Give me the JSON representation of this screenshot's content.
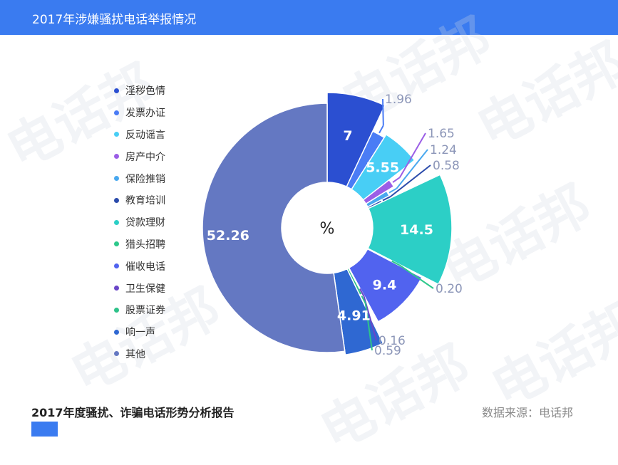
{
  "header": {
    "title": "2017年涉嫌骚扰电话举报情况"
  },
  "watermark_text": "电话邦",
  "chart_data": {
    "type": "pie",
    "center_label": "%",
    "slices": [
      {
        "label": "淫秽色情",
        "value": 7,
        "display": "7",
        "color": "#2b4fd1"
      },
      {
        "label": "发票办证",
        "value": 1.96,
        "display": "1.96",
        "color": "#4a7cf5"
      },
      {
        "label": "反动谣言",
        "value": 5.55,
        "display": "5.55",
        "color": "#48cef5"
      },
      {
        "label": "房产中介",
        "value": 1.65,
        "display": "1.65",
        "color": "#9b5ee6"
      },
      {
        "label": "保险推销",
        "value": 1.24,
        "display": "1.24",
        "color": "#49a8ef"
      },
      {
        "label": "教育培训",
        "value": 0.58,
        "display": "0.58",
        "color": "#2b4bab"
      },
      {
        "label": "贷款理财",
        "value": 14.5,
        "display": "14.5",
        "color": "#2ccfc6"
      },
      {
        "label": "猎头招聘",
        "value": 0.2,
        "display": "0.20",
        "color": "#2dc88b"
      },
      {
        "label": "催收电话",
        "value": 9.4,
        "display": "9.4",
        "color": "#5163ef"
      },
      {
        "label": "卫生保健",
        "value": 0.16,
        "display": "0.16",
        "color": "#6a46c8"
      },
      {
        "label": "股票证券",
        "value": 0.59,
        "display": "0.59",
        "color": "#2ec28a"
      },
      {
        "label": "响一声",
        "value": 4.91,
        "display": "4.91",
        "color": "#2f68d2"
      },
      {
        "label": "其他",
        "value": 52.26,
        "display": "52.26",
        "color": "#6478c2"
      }
    ]
  },
  "footer": {
    "report_title": "2017年度骚扰、诈骗电话形势分析报告",
    "source": "数据来源：电话邦"
  }
}
